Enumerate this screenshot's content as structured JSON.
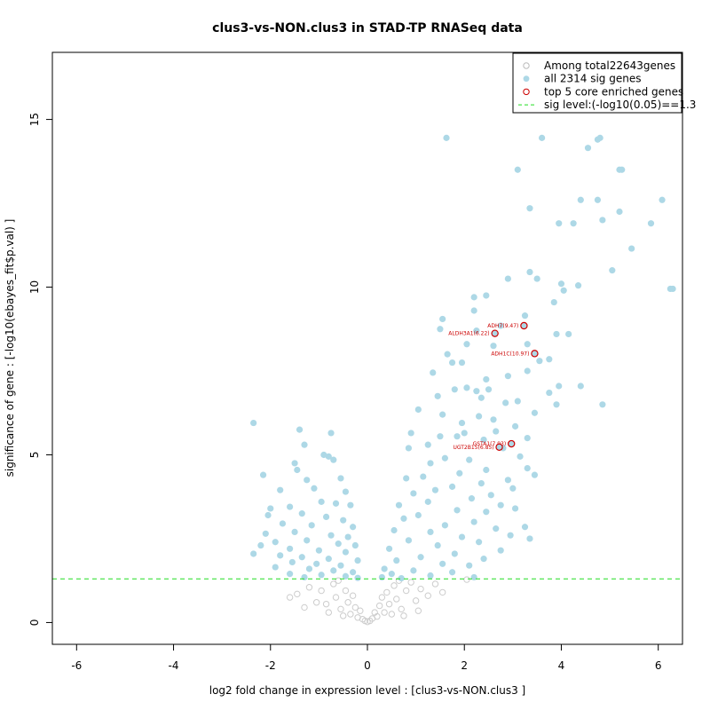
{
  "chart_data": {
    "type": "scatter",
    "title": "clus3-vs-NON.clus3 in STAD-TP RNASeq data",
    "xlabel": "log2 fold change in expression level : [clus3-vs-NON.clus3 ]",
    "ylabel": "significance of gene : [-log10(ebayes_fit$p.val) ]",
    "xlim": [
      -6.5,
      6.5
    ],
    "ylim": [
      -0.65,
      17.0
    ],
    "x_ticks": [
      -6,
      -4,
      -2,
      0,
      2,
      4,
      6
    ],
    "y_ticks": [
      0,
      5,
      10,
      15
    ],
    "grid": false,
    "legend_position": "top-right",
    "legend": [
      {
        "label": "Among total22643genes",
        "marker": "open-circle",
        "color": "#bbbbbb"
      },
      {
        "label": "all 2314 sig genes",
        "marker": "filled-circle",
        "color": "#add8e6"
      },
      {
        "label": "top 5 core enriched genes",
        "marker": "open-circle",
        "color": "#cc0000"
      },
      {
        "label": "sig level:(-log10(0.05)==1.3",
        "marker": "dashed-line",
        "color": "#22dd22"
      }
    ],
    "sig_level": 1.3,
    "colors": {
      "nonsig": "#cccccc",
      "sig": "#add8e6",
      "top": "#cc0000",
      "sigline": "#22dd22"
    },
    "series": [
      {
        "name": "top 5 core enriched genes",
        "points": [
          {
            "x": 3.23,
            "y": 8.85,
            "label": "ADH7(9.47)"
          },
          {
            "x": 2.63,
            "y": 8.62,
            "label": "ALDH3A1(6.22)"
          },
          {
            "x": 3.45,
            "y": 8.02,
            "label": "ADH1C(10.97)"
          },
          {
            "x": 2.97,
            "y": 5.33,
            "label": "GSTA1(7.93)"
          },
          {
            "x": 2.72,
            "y": 5.23,
            "label": "UGT2B15(6.85)"
          }
        ]
      },
      {
        "name": "all 2314 sig genes",
        "points": [
          {
            "x": 1.63,
            "y": 14.45
          },
          {
            "x": 3.6,
            "y": 14.45
          },
          {
            "x": 4.8,
            "y": 14.45
          },
          {
            "x": 4.75,
            "y": 14.4
          },
          {
            "x": 4.55,
            "y": 14.15
          },
          {
            "x": 3.1,
            "y": 13.5
          },
          {
            "x": 5.2,
            "y": 13.5
          },
          {
            "x": 5.25,
            "y": 13.5
          },
          {
            "x": 4.4,
            "y": 12.6
          },
          {
            "x": 4.75,
            "y": 12.6
          },
          {
            "x": 6.08,
            "y": 12.6
          },
          {
            "x": 3.35,
            "y": 12.35
          },
          {
            "x": 5.2,
            "y": 12.25
          },
          {
            "x": 4.85,
            "y": 12.0
          },
          {
            "x": 3.95,
            "y": 11.9
          },
          {
            "x": 4.25,
            "y": 11.9
          },
          {
            "x": 5.85,
            "y": 11.9
          },
          {
            "x": 5.45,
            "y": 11.15
          },
          {
            "x": 5.05,
            "y": 10.5
          },
          {
            "x": 3.35,
            "y": 10.45
          },
          {
            "x": 3.5,
            "y": 10.25
          },
          {
            "x": 2.9,
            "y": 10.25
          },
          {
            "x": 4.0,
            "y": 10.1
          },
          {
            "x": 4.35,
            "y": 10.05
          },
          {
            "x": 4.05,
            "y": 9.9
          },
          {
            "x": 6.25,
            "y": 9.95
          },
          {
            "x": 6.3,
            "y": 9.95
          },
          {
            "x": 2.45,
            "y": 9.75
          },
          {
            "x": 2.2,
            "y": 9.7
          },
          {
            "x": 3.85,
            "y": 9.55
          },
          {
            "x": 2.2,
            "y": 9.3
          },
          {
            "x": 3.25,
            "y": 9.15
          },
          {
            "x": 1.55,
            "y": 9.05
          },
          {
            "x": 2.75,
            "y": 8.85
          },
          {
            "x": 1.5,
            "y": 8.75
          },
          {
            "x": 2.25,
            "y": 8.7
          },
          {
            "x": 3.9,
            "y": 8.6
          },
          {
            "x": 4.15,
            "y": 8.6
          },
          {
            "x": 3.3,
            "y": 8.3
          },
          {
            "x": 2.05,
            "y": 8.3
          },
          {
            "x": 2.6,
            "y": 8.25
          },
          {
            "x": 1.65,
            "y": 8.0
          },
          {
            "x": 3.75,
            "y": 7.85
          },
          {
            "x": 3.55,
            "y": 7.8
          },
          {
            "x": 1.75,
            "y": 7.75
          },
          {
            "x": 1.95,
            "y": 7.75
          },
          {
            "x": 3.3,
            "y": 7.5
          },
          {
            "x": 2.9,
            "y": 7.35
          },
          {
            "x": 1.35,
            "y": 7.45
          },
          {
            "x": 2.45,
            "y": 7.25
          },
          {
            "x": 2.05,
            "y": 7.0
          },
          {
            "x": 4.4,
            "y": 7.05
          },
          {
            "x": 3.95,
            "y": 7.05
          },
          {
            "x": 2.25,
            "y": 6.9
          },
          {
            "x": 2.5,
            "y": 6.95
          },
          {
            "x": 1.8,
            "y": 6.95
          },
          {
            "x": 3.75,
            "y": 6.85
          },
          {
            "x": 1.45,
            "y": 6.75
          },
          {
            "x": 2.35,
            "y": 6.7
          },
          {
            "x": 3.1,
            "y": 6.6
          },
          {
            "x": 2.85,
            "y": 6.55
          },
          {
            "x": 3.9,
            "y": 6.5
          },
          {
            "x": 4.85,
            "y": 6.5
          },
          {
            "x": 1.05,
            "y": 6.35
          },
          {
            "x": 1.55,
            "y": 6.2
          },
          {
            "x": 2.3,
            "y": 6.15
          },
          {
            "x": 3.45,
            "y": 6.25
          },
          {
            "x": 2.6,
            "y": 6.05
          },
          {
            "x": 1.95,
            "y": 5.95
          },
          {
            "x": 3.05,
            "y": 5.85
          },
          {
            "x": 2.0,
            "y": 5.65
          },
          {
            "x": 0.9,
            "y": 5.65
          },
          {
            "x": 2.65,
            "y": 5.7
          },
          {
            "x": 1.5,
            "y": 5.55
          },
          {
            "x": 1.85,
            "y": 5.55
          },
          {
            "x": 3.3,
            "y": 5.5
          },
          {
            "x": 2.4,
            "y": 5.45
          },
          {
            "x": 1.25,
            "y": 5.3
          },
          {
            "x": 0.85,
            "y": 5.2
          },
          {
            "x": 2.8,
            "y": 5.2
          },
          {
            "x": 3.15,
            "y": 4.95
          },
          {
            "x": 1.6,
            "y": 4.9
          },
          {
            "x": 2.1,
            "y": 4.85
          },
          {
            "x": 1.3,
            "y": 4.75
          },
          {
            "x": 3.3,
            "y": 4.6
          },
          {
            "x": 2.45,
            "y": 4.55
          },
          {
            "x": 1.9,
            "y": 4.45
          },
          {
            "x": 3.45,
            "y": 4.4
          },
          {
            "x": 1.15,
            "y": 4.35
          },
          {
            "x": 0.8,
            "y": 4.3
          },
          {
            "x": 2.9,
            "y": 4.25
          },
          {
            "x": 2.35,
            "y": 4.15
          },
          {
            "x": 1.75,
            "y": 4.05
          },
          {
            "x": 3.0,
            "y": 4.0
          },
          {
            "x": 1.4,
            "y": 3.95
          },
          {
            "x": 0.95,
            "y": 3.85
          },
          {
            "x": 2.55,
            "y": 3.8
          },
          {
            "x": 2.15,
            "y": 3.7
          },
          {
            "x": 1.25,
            "y": 3.6
          },
          {
            "x": 2.75,
            "y": 3.5
          },
          {
            "x": 0.65,
            "y": 3.5
          },
          {
            "x": 3.05,
            "y": 3.4
          },
          {
            "x": 1.85,
            "y": 3.35
          },
          {
            "x": 2.45,
            "y": 3.3
          },
          {
            "x": 1.05,
            "y": 3.2
          },
          {
            "x": 0.75,
            "y": 3.1
          },
          {
            "x": 2.2,
            "y": 3.0
          },
          {
            "x": 1.6,
            "y": 2.9
          },
          {
            "x": 3.25,
            "y": 2.85
          },
          {
            "x": 2.65,
            "y": 2.8
          },
          {
            "x": 0.55,
            "y": 2.75
          },
          {
            "x": 1.3,
            "y": 2.7
          },
          {
            "x": 2.95,
            "y": 2.6
          },
          {
            "x": 1.95,
            "y": 2.55
          },
          {
            "x": 3.35,
            "y": 2.5
          },
          {
            "x": 0.85,
            "y": 2.45
          },
          {
            "x": 2.3,
            "y": 2.4
          },
          {
            "x": 1.45,
            "y": 2.3
          },
          {
            "x": 0.45,
            "y": 2.2
          },
          {
            "x": 2.75,
            "y": 2.15
          },
          {
            "x": 1.8,
            "y": 2.05
          },
          {
            "x": 1.1,
            "y": 1.95
          },
          {
            "x": 2.4,
            "y": 1.9
          },
          {
            "x": 0.6,
            "y": 1.85
          },
          {
            "x": 1.55,
            "y": 1.75
          },
          {
            "x": 2.1,
            "y": 1.7
          },
          {
            "x": 0.35,
            "y": 1.6
          },
          {
            "x": 0.95,
            "y": 1.55
          },
          {
            "x": 1.75,
            "y": 1.5
          },
          {
            "x": 0.5,
            "y": 1.45
          },
          {
            "x": 1.3,
            "y": 1.4
          },
          {
            "x": 2.2,
            "y": 1.35
          },
          {
            "x": 0.3,
            "y": 1.35
          },
          {
            "x": 0.7,
            "y": 1.32
          },
          {
            "x": -2.35,
            "y": 5.95
          },
          {
            "x": -2.15,
            "y": 4.4
          },
          {
            "x": -1.4,
            "y": 5.75
          },
          {
            "x": -1.3,
            "y": 5.3
          },
          {
            "x": -0.75,
            "y": 5.65
          },
          {
            "x": -0.9,
            "y": 5.0
          },
          {
            "x": -0.8,
            "y": 4.95
          },
          {
            "x": -1.5,
            "y": 4.75
          },
          {
            "x": -1.45,
            "y": 4.55
          },
          {
            "x": -0.7,
            "y": 4.85
          },
          {
            "x": -1.25,
            "y": 4.25
          },
          {
            "x": -0.55,
            "y": 4.3
          },
          {
            "x": -1.8,
            "y": 3.95
          },
          {
            "x": -1.1,
            "y": 4.0
          },
          {
            "x": -0.45,
            "y": 3.9
          },
          {
            "x": -2.0,
            "y": 3.4
          },
          {
            "x": -1.6,
            "y": 3.45
          },
          {
            "x": -0.95,
            "y": 3.6
          },
          {
            "x": -0.65,
            "y": 3.55
          },
          {
            "x": -0.35,
            "y": 3.5
          },
          {
            "x": -2.05,
            "y": 3.2
          },
          {
            "x": -1.35,
            "y": 3.25
          },
          {
            "x": -0.85,
            "y": 3.15
          },
          {
            "x": -0.5,
            "y": 3.05
          },
          {
            "x": -1.75,
            "y": 2.95
          },
          {
            "x": -1.15,
            "y": 2.9
          },
          {
            "x": -0.3,
            "y": 2.85
          },
          {
            "x": -2.1,
            "y": 2.65
          },
          {
            "x": -1.5,
            "y": 2.7
          },
          {
            "x": -0.75,
            "y": 2.6
          },
          {
            "x": -0.4,
            "y": 2.55
          },
          {
            "x": -1.9,
            "y": 2.4
          },
          {
            "x": -1.25,
            "y": 2.45
          },
          {
            "x": -0.6,
            "y": 2.35
          },
          {
            "x": -0.25,
            "y": 2.3
          },
          {
            "x": -2.2,
            "y": 2.3
          },
          {
            "x": -1.6,
            "y": 2.2
          },
          {
            "x": -1.0,
            "y": 2.15
          },
          {
            "x": -0.45,
            "y": 2.1
          },
          {
            "x": -1.8,
            "y": 2.0
          },
          {
            "x": -1.35,
            "y": 1.95
          },
          {
            "x": -0.8,
            "y": 1.9
          },
          {
            "x": -0.2,
            "y": 1.85
          },
          {
            "x": -2.35,
            "y": 2.05
          },
          {
            "x": -1.55,
            "y": 1.8
          },
          {
            "x": -1.05,
            "y": 1.75
          },
          {
            "x": -0.55,
            "y": 1.7
          },
          {
            "x": -1.9,
            "y": 1.65
          },
          {
            "x": -1.2,
            "y": 1.6
          },
          {
            "x": -0.7,
            "y": 1.55
          },
          {
            "x": -0.3,
            "y": 1.5
          },
          {
            "x": -1.6,
            "y": 1.45
          },
          {
            "x": -0.95,
            "y": 1.42
          },
          {
            "x": -0.45,
            "y": 1.38
          },
          {
            "x": -1.3,
            "y": 1.35
          },
          {
            "x": -0.2,
            "y": 1.33
          }
        ]
      },
      {
        "name": "Among total22643genes",
        "points": [
          {
            "x": -1.45,
            "y": 0.85
          },
          {
            "x": -1.2,
            "y": 1.05
          },
          {
            "x": -0.95,
            "y": 0.95
          },
          {
            "x": -0.85,
            "y": 0.55
          },
          {
            "x": -0.7,
            "y": 1.15
          },
          {
            "x": -0.65,
            "y": 0.75
          },
          {
            "x": -0.55,
            "y": 0.4
          },
          {
            "x": -0.45,
            "y": 0.95
          },
          {
            "x": -0.4,
            "y": 0.6
          },
          {
            "x": -0.35,
            "y": 0.25
          },
          {
            "x": -0.3,
            "y": 0.8
          },
          {
            "x": -0.25,
            "y": 0.45
          },
          {
            "x": -0.2,
            "y": 0.15
          },
          {
            "x": -0.15,
            "y": 0.35
          },
          {
            "x": -0.1,
            "y": 0.1
          },
          {
            "x": -0.05,
            "y": 0.05
          },
          {
            "x": 0.0,
            "y": 0.02
          },
          {
            "x": 0.05,
            "y": 0.05
          },
          {
            "x": 0.1,
            "y": 0.12
          },
          {
            "x": 0.15,
            "y": 0.3
          },
          {
            "x": 0.2,
            "y": 0.18
          },
          {
            "x": 0.25,
            "y": 0.5
          },
          {
            "x": 0.3,
            "y": 0.75
          },
          {
            "x": 0.35,
            "y": 0.3
          },
          {
            "x": 0.4,
            "y": 0.9
          },
          {
            "x": 0.45,
            "y": 0.55
          },
          {
            "x": 0.55,
            "y": 1.1
          },
          {
            "x": 0.6,
            "y": 0.7
          },
          {
            "x": 0.7,
            "y": 0.4
          },
          {
            "x": 0.8,
            "y": 0.95
          },
          {
            "x": 0.9,
            "y": 1.2
          },
          {
            "x": 1.0,
            "y": 0.65
          },
          {
            "x": 1.1,
            "y": 1.0
          },
          {
            "x": 1.25,
            "y": 0.8
          },
          {
            "x": 1.4,
            "y": 1.15
          },
          {
            "x": -1.6,
            "y": 0.75
          },
          {
            "x": -1.05,
            "y": 0.6
          },
          {
            "x": -0.8,
            "y": 0.3
          },
          {
            "x": -0.5,
            "y": 0.2
          },
          {
            "x": 0.5,
            "y": 0.25
          },
          {
            "x": 0.75,
            "y": 0.2
          },
          {
            "x": 1.05,
            "y": 0.35
          },
          {
            "x": -1.3,
            "y": 0.45
          },
          {
            "x": 1.55,
            "y": 0.9
          },
          {
            "x": -0.6,
            "y": 1.25
          },
          {
            "x": 0.65,
            "y": 1.25
          },
          {
            "x": 2.05,
            "y": 1.28
          }
        ]
      }
    ]
  }
}
